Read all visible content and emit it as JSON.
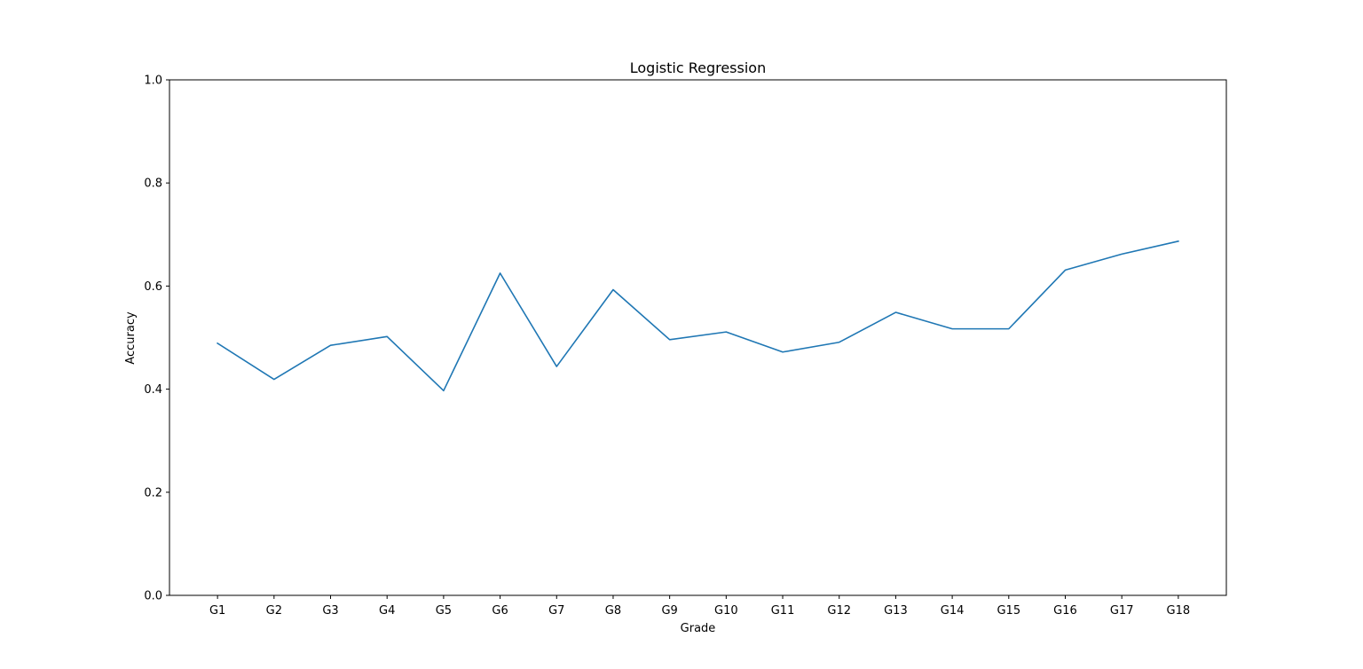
{
  "chart_data": {
    "type": "line",
    "title": "Logistic Regression",
    "xlabel": "Grade",
    "ylabel": "Accuracy",
    "ylim": [
      0,
      1
    ],
    "yticks": [
      "0.0",
      "0.2",
      "0.4",
      "0.6",
      "0.8",
      "1.0"
    ],
    "grid": false,
    "categories": [
      "G1",
      "G2",
      "G3",
      "G4",
      "G5",
      "G6",
      "G7",
      "G8",
      "G9",
      "G10",
      "G11",
      "G12",
      "G13",
      "G14",
      "G15",
      "G16",
      "G17",
      "G18"
    ],
    "series": [
      {
        "values": [
          0.489,
          0.419,
          0.485,
          0.502,
          0.397,
          0.625,
          0.444,
          0.593,
          0.496,
          0.511,
          0.472,
          0.491,
          0.549,
          0.517,
          0.517,
          0.631,
          0.662,
          0.687
        ],
        "color": "#1f77b4"
      }
    ]
  }
}
